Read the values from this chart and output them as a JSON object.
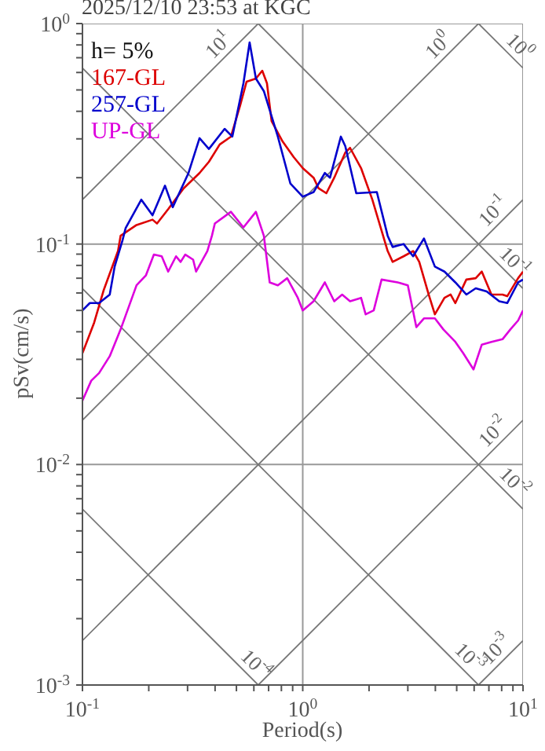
{
  "chart_data": {
    "type": "line",
    "title": "2025/12/10 23:53 at KGC",
    "xlabel": "Period(s)",
    "ylabel": "pSv(cm/s)",
    "log": "xy",
    "grid": true,
    "legend": "top left",
    "marker": "none",
    "line_style": "solid",
    "xlim": [
      0.1,
      10
    ],
    "ylim": [
      0.001,
      1
    ],
    "xticks": [
      {
        "value": 0.1,
        "label": "10$^{-1}$"
      },
      {
        "value": 0.2,
        "label": null
      },
      {
        "value": 0.3,
        "label": null
      },
      {
        "value": 0.4,
        "label": null
      },
      {
        "value": 0.5,
        "label": null
      },
      {
        "value": 0.6,
        "label": null
      },
      {
        "value": 0.7,
        "label": null
      },
      {
        "value": 0.8,
        "label": null
      },
      {
        "value": 0.9,
        "label": null
      },
      {
        "value": 1,
        "label": "10$^{0}$"
      },
      {
        "value": 2,
        "label": null
      },
      {
        "value": 3,
        "label": null
      },
      {
        "value": 4,
        "label": null
      },
      {
        "value": 5,
        "label": null
      },
      {
        "value": 6,
        "label": null
      },
      {
        "value": 7,
        "label": null
      },
      {
        "value": 8,
        "label": null
      },
      {
        "value": 9,
        "label": null
      },
      {
        "value": 10,
        "label": "10$^{1}$"
      }
    ],
    "yticks": [
      {
        "value": 0.001,
        "label": "10$^{-3}$"
      },
      {
        "value": 0.002,
        "label": null
      },
      {
        "value": 0.003,
        "label": null
      },
      {
        "value": 0.004,
        "label": null
      },
      {
        "value": 0.005,
        "label": null
      },
      {
        "value": 0.006,
        "label": null
      },
      {
        "value": 0.007,
        "label": null
      },
      {
        "value": 0.008,
        "label": null
      },
      {
        "value": 0.009,
        "label": null
      },
      {
        "value": 0.01,
        "label": "10$^{-2}$"
      },
      {
        "value": 0.02,
        "label": null
      },
      {
        "value": 0.03,
        "label": null
      },
      {
        "value": 0.04,
        "label": null
      },
      {
        "value": 0.05,
        "label": null
      },
      {
        "value": 0.06,
        "label": null
      },
      {
        "value": 0.07,
        "label": null
      },
      {
        "value": 0.08,
        "label": null
      },
      {
        "value": 0.09,
        "label": null
      },
      {
        "value": 0.1,
        "label": "10$^{-1}$"
      },
      {
        "value": 0.2,
        "label": null
      },
      {
        "value": 0.3,
        "label": null
      },
      {
        "value": 0.4,
        "label": null
      },
      {
        "value": 0.5,
        "label": null
      },
      {
        "value": 0.6,
        "label": null
      },
      {
        "value": 0.7,
        "label": null
      },
      {
        "value": 0.8,
        "label": null
      },
      {
        "value": 0.9,
        "label": null
      },
      {
        "value": 1,
        "label": "10$^{0}$"
      }
    ],
    "series": [
      {
        "color": "#777777",
        "x": [
          0.1,
          0.628
        ],
        "values": [
          0.159,
          1
        ]
      },
      {
        "color": "#777777",
        "x": [
          0.1,
          6.28
        ],
        "values": [
          0.0159,
          1
        ]
      },
      {
        "color": "#777777",
        "x": [
          0.1,
          10
        ],
        "values": [
          0.00159,
          0.159
        ]
      },
      {
        "color": "#777777",
        "x": [
          0.628,
          10
        ],
        "values": [
          0.001,
          0.0159
        ]
      },
      {
        "color": "#777777",
        "x": [
          6.28,
          10
        ],
        "values": [
          0.001,
          0.00159
        ]
      },
      {
        "color": "#777777",
        "x": [
          6.28,
          10
        ],
        "values": [
          1,
          0.628
        ]
      },
      {
        "color": "#777777",
        "x": [
          0.628,
          10
        ],
        "values": [
          1,
          0.0628
        ]
      },
      {
        "color": "#777777",
        "x": [
          0.1,
          10
        ],
        "values": [
          0.628,
          0.00628
        ]
      },
      {
        "color": "#777777",
        "x": [
          0.1,
          6.28
        ],
        "values": [
          0.0628,
          0.001
        ]
      },
      {
        "color": "#777777",
        "x": [
          0.1,
          0.628
        ],
        "values": [
          0.00628,
          0.001
        ]
      },
      {
        "name": "167-GL",
        "color": "#dd0000",
        "x": [
          0.1,
          0.113,
          0.125,
          0.145,
          0.149,
          0.176,
          0.208,
          0.218,
          0.245,
          0.288,
          0.34,
          0.375,
          0.42,
          0.472,
          0.52,
          0.556,
          0.613,
          0.655,
          0.688,
          0.722,
          0.81,
          0.91,
          1.0,
          1.12,
          1.18,
          1.28,
          1.39,
          1.56,
          1.64,
          1.84,
          2.07,
          2.28,
          2.43,
          2.56,
          2.87,
          3.17,
          3.38,
          3.73,
          3.98,
          4.4,
          4.69,
          4.93,
          5.53,
          6.1,
          6.5,
          7.19,
          8.07,
          8.48,
          9.5,
          10
        ],
        "values": [
          0.032,
          0.044,
          0.062,
          0.093,
          0.109,
          0.122,
          0.129,
          0.124,
          0.144,
          0.179,
          0.21,
          0.236,
          0.283,
          0.307,
          0.426,
          0.545,
          0.563,
          0.611,
          0.536,
          0.361,
          0.292,
          0.248,
          0.221,
          0.2,
          0.179,
          0.17,
          0.2,
          0.26,
          0.273,
          0.221,
          0.159,
          0.115,
          0.093,
          0.083,
          0.088,
          0.093,
          0.083,
          0.059,
          0.048,
          0.057,
          0.059,
          0.054,
          0.069,
          0.07,
          0.075,
          0.059,
          0.059,
          0.058,
          0.07,
          0.075
        ]
      },
      {
        "name": "257-GL",
        "color": "#0000cc",
        "x": [
          0.1,
          0.108,
          0.119,
          0.133,
          0.14,
          0.152,
          0.157,
          0.185,
          0.208,
          0.237,
          0.257,
          0.303,
          0.34,
          0.375,
          0.442,
          0.479,
          0.538,
          0.574,
          0.613,
          0.666,
          0.771,
          0.879,
          1.0,
          1.12,
          1.26,
          1.33,
          1.49,
          1.56,
          1.75,
          2.17,
          2.43,
          2.56,
          2.87,
          3.17,
          3.55,
          3.98,
          4.4,
          4.93,
          5.53,
          6.1,
          6.84,
          7.8,
          8.48,
          9.5,
          10
        ],
        "values": [
          0.05,
          0.054,
          0.054,
          0.059,
          0.079,
          0.104,
          0.118,
          0.159,
          0.135,
          0.184,
          0.147,
          0.21,
          0.302,
          0.27,
          0.333,
          0.307,
          0.536,
          0.821,
          0.563,
          0.494,
          0.307,
          0.188,
          0.164,
          0.172,
          0.21,
          0.2,
          0.307,
          0.278,
          0.17,
          0.172,
          0.109,
          0.097,
          0.1,
          0.088,
          0.106,
          0.079,
          0.075,
          0.067,
          0.059,
          0.063,
          0.061,
          0.055,
          0.054,
          0.067,
          0.069
        ]
      },
      {
        "name": "UP-GL",
        "color": "#dd00dd",
        "x": [
          0.1,
          0.1096,
          0.119,
          0.133,
          0.149,
          0.176,
          0.194,
          0.211,
          0.229,
          0.245,
          0.266,
          0.279,
          0.293,
          0.318,
          0.328,
          0.369,
          0.387,
          0.399,
          0.472,
          0.538,
          0.613,
          0.666,
          0.708,
          0.771,
          0.85,
          0.95,
          1.0,
          1.12,
          1.26,
          1.39,
          1.51,
          1.64,
          1.84,
          1.93,
          2.1,
          2.28,
          2.7,
          3.0,
          3.28,
          3.55,
          3.98,
          4.35,
          4.93,
          5.35,
          5.96,
          6.5,
          7.19,
          8.07,
          8.76,
          9.5,
          10
        ],
        "values": [
          0.0195,
          0.024,
          0.026,
          0.031,
          0.041,
          0.065,
          0.072,
          0.0896,
          0.088,
          0.075,
          0.088,
          0.083,
          0.0896,
          0.085,
          0.075,
          0.093,
          0.109,
          0.124,
          0.14,
          0.119,
          0.14,
          0.109,
          0.067,
          0.065,
          0.07,
          0.057,
          0.05,
          0.055,
          0.067,
          0.055,
          0.059,
          0.055,
          0.057,
          0.048,
          0.05,
          0.069,
          0.067,
          0.065,
          0.042,
          0.046,
          0.046,
          0.041,
          0.036,
          0.032,
          0.027,
          0.035,
          0.036,
          0.037,
          0.041,
          0.045,
          0.05
        ]
      }
    ],
    "annotations": [
      "h= 5%",
      {
        "text": "10$^{1}$",
        "x": 0.456,
        "y": 0.726
      },
      {
        "text": "10$^{0}$",
        "x": 4.54,
        "y": 0.723
      },
      {
        "text": "10$^{0}$",
        "x": 8.77,
        "y": 0.716
      },
      {
        "text": "10$^{-1}$",
        "x": 8.07,
        "y": 0.128
      },
      {
        "text": "10$^{-1}$",
        "x": 8.3,
        "y": 0.0757
      },
      {
        "text": "10$^{-2}$",
        "x": 8.07,
        "y": 0.0128
      },
      {
        "text": "10$^{-2}$",
        "x": 8.3,
        "y": 0.00757
      },
      {
        "text": "10$^{-4}$",
        "x": 0.556,
        "y": 0.00113
      },
      {
        "text": "10$^{-3}$",
        "x": 5.2,
        "y": 0.00121
      },
      {
        "text": "10$^{-3}$",
        "x": 8.3,
        "y": 0.00132
      }
    ]
  }
}
